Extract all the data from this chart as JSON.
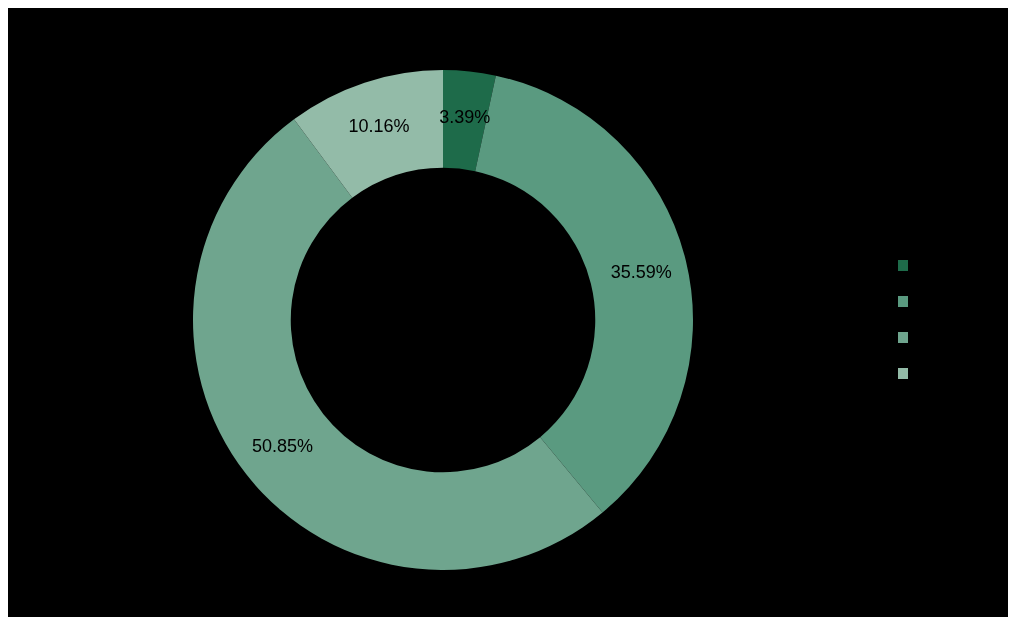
{
  "chart_data": {
    "type": "donut",
    "categories": [
      null,
      null,
      null,
      null
    ],
    "values": [
      3.39,
      35.59,
      50.85,
      10.16
    ],
    "value_labels": [
      "3.39%",
      "35.59%",
      "50.85%",
      "10.16%"
    ],
    "colors": [
      "#1e6b4a",
      "#5a9a80",
      "#6fa58e",
      "#93bba8"
    ]
  }
}
